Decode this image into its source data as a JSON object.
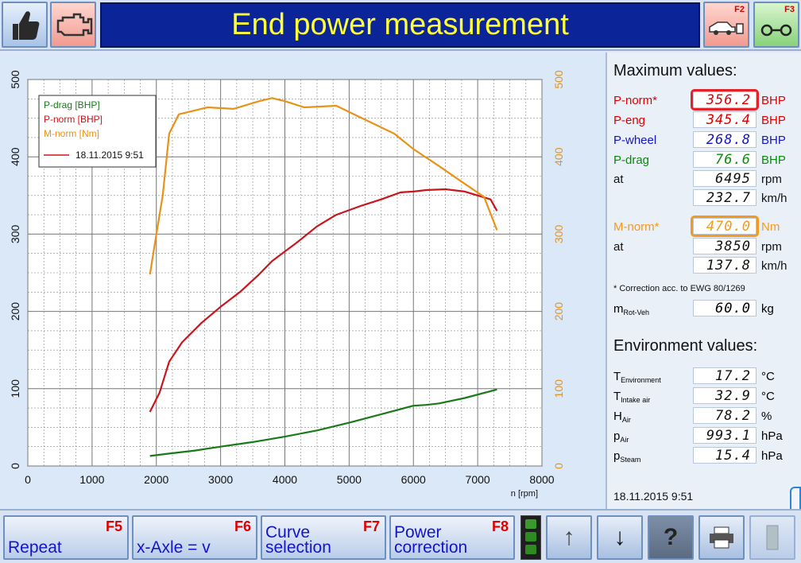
{
  "header": {
    "title": "End power measurement",
    "f2_label": "F2",
    "f3_label": "F3"
  },
  "chart_data": {
    "type": "line",
    "x_axis": {
      "ticks": [
        0,
        1000,
        2000,
        3000,
        4000,
        5000,
        6000,
        7000,
        8000
      ],
      "label": "n [rpm]",
      "range": [
        0,
        8000
      ]
    },
    "y_left": {
      "ticks": [
        0,
        100,
        200,
        300,
        400,
        500
      ],
      "range": [
        0,
        500
      ]
    },
    "y_right": {
      "ticks": [
        0,
        100,
        200,
        300,
        400,
        500
      ],
      "range": [
        0,
        500
      ]
    },
    "grid": true,
    "legend": {
      "position": "top-left",
      "entries": [
        "P-drag [BHP]",
        "P-norm [BHP]",
        "M-norm [Nm]"
      ],
      "run_label": "18.11.2015 9:51"
    },
    "series": [
      {
        "name": "P-drag [BHP]",
        "color": "#1a7a1a",
        "x": [
          1900,
          2200,
          2600,
          3000,
          3500,
          4000,
          4500,
          5000,
          5500,
          6000,
          6200,
          6400,
          6800,
          7300
        ],
        "y": [
          13,
          16,
          20,
          25,
          31,
          38,
          46,
          56,
          67,
          78,
          79,
          81,
          88,
          99
        ]
      },
      {
        "name": "P-norm [BHP]",
        "color": "#c8161c",
        "x": [
          1900,
          2050,
          2200,
          2400,
          2700,
          3000,
          3300,
          3600,
          3800,
          4200,
          4500,
          4800,
          5200,
          5500,
          5800,
          6000,
          6200,
          6500,
          6800,
          7000,
          7200,
          7300
        ],
        "y": [
          70,
          95,
          135,
          160,
          185,
          206,
          225,
          248,
          265,
          290,
          310,
          325,
          337,
          345,
          354,
          355,
          357,
          358,
          355,
          350,
          345,
          330
        ]
      },
      {
        "name": "M-norm [Nm]",
        "color": "#e89218",
        "x": [
          1900,
          2000,
          2100,
          2200,
          2350,
          2500,
          2800,
          3200,
          3600,
          3800,
          4000,
          4300,
          4800,
          5200,
          5700,
          6000,
          6400,
          6800,
          7100,
          7300
        ],
        "y": [
          248,
          300,
          350,
          430,
          455,
          458,
          464,
          462,
          472,
          476,
          472,
          464,
          466,
          450,
          430,
          410,
          388,
          365,
          348,
          305
        ]
      }
    ]
  },
  "max_values": {
    "heading": "Maximum values:",
    "rows": [
      {
        "label": "P-norm*",
        "value": "356.2",
        "unit": "BHP",
        "color": "#e00000"
      },
      {
        "label": "P-eng",
        "value": "345.4",
        "unit": "BHP",
        "color": "#e00000"
      },
      {
        "label": "P-wheel",
        "value": "268.8",
        "unit": "BHP",
        "color": "#1414c8"
      },
      {
        "label": "P-drag",
        "value": "76.6",
        "unit": "BHP",
        "color": "#0a8a0a"
      },
      {
        "label": "at",
        "value": "6495",
        "unit": "rpm",
        "color": "#111111"
      },
      {
        "label": "",
        "value": "232.7",
        "unit": "km/h",
        "color": "#111111"
      },
      {
        "label": "M-norm*",
        "value": "470.0",
        "unit": "Nm",
        "color": "#f39a1e"
      },
      {
        "label": "at",
        "value": "3850",
        "unit": "rpm",
        "color": "#111111"
      },
      {
        "label": "",
        "value": "137.8",
        "unit": "km/h",
        "color": "#111111"
      }
    ],
    "note": "* Correction acc. to EWG 80/1269",
    "mrot": {
      "label_main": "m",
      "label_sub": "Rot-Veh",
      "value": "60.0",
      "unit": "kg"
    }
  },
  "environment": {
    "heading": "Environment values:",
    "rows": [
      {
        "label_main": "T",
        "label_sub": "Environment",
        "value": "17.2",
        "unit": "°C"
      },
      {
        "label_main": "T",
        "label_sub": "Intake air",
        "value": "32.9",
        "unit": "°C"
      },
      {
        "label_main": "H",
        "label_sub": "Air",
        "value": "78.2",
        "unit": "%"
      },
      {
        "label_main": "p",
        "label_sub": "Air",
        "value": "993.1",
        "unit": "hPa"
      },
      {
        "label_main": "p",
        "label_sub": "Steam",
        "value": "15.4",
        "unit": "hPa"
      }
    ],
    "date": "18.11.2015   9:51"
  },
  "footer": {
    "repeat": {
      "label": "Repeat",
      "key": "F5"
    },
    "xaxle": {
      "label": "x-Axle = v",
      "key": "F6"
    },
    "curve": {
      "line1": "Curve",
      "line2": "selection",
      "key": "F7"
    },
    "power": {
      "line1": "Power",
      "line2": "correction",
      "key": "F8"
    }
  }
}
